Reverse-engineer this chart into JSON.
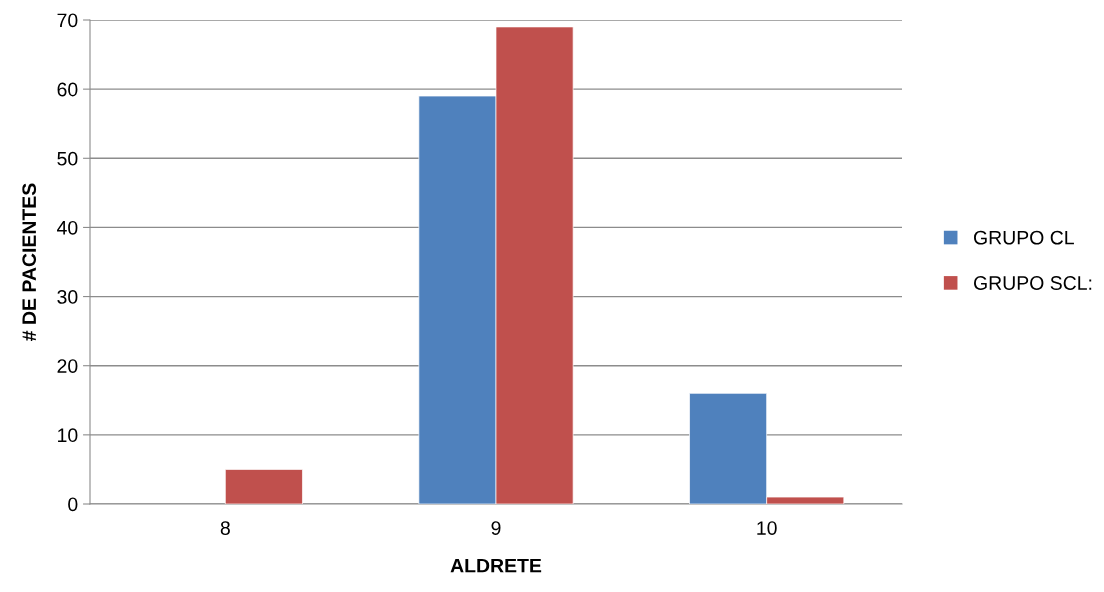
{
  "chart_data": {
    "type": "bar",
    "xlabel": "ALDRETE",
    "ylabel": "# DE PACIENTES",
    "categories": [
      "8",
      "9",
      "10"
    ],
    "series": [
      {
        "name": "GRUPO CL",
        "color": "#4f81bd",
        "values": [
          null,
          59,
          16
        ]
      },
      {
        "name": "GRUPO SCL:",
        "color": "#c0504d",
        "values": [
          5,
          69,
          1
        ]
      }
    ],
    "ylim": [
      0,
      70
    ],
    "yticks": [
      0,
      10,
      20,
      30,
      40,
      50,
      60,
      70
    ],
    "grid": "y",
    "legend": "right"
  }
}
